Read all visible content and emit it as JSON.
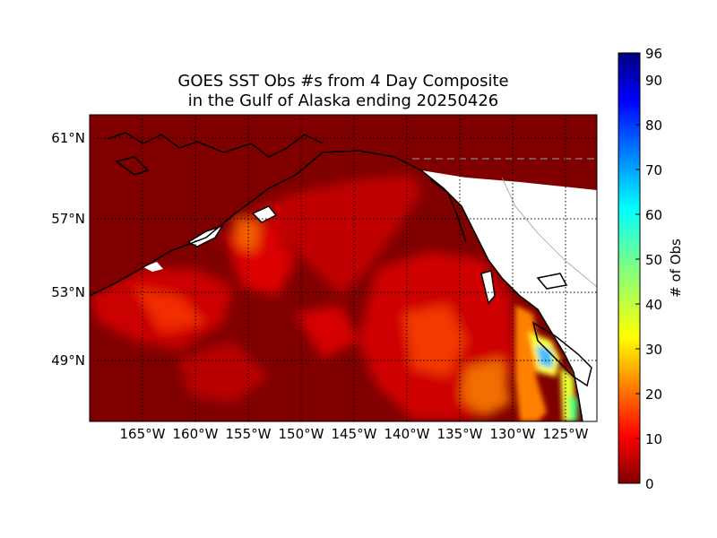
{
  "title": {
    "line1": "GOES SST Obs #s from 4 Day Composite",
    "line2": "in the Gulf of Alaska ending 20250426"
  },
  "map": {
    "lat_ticks": [
      "61°N",
      "57°N",
      "53°N",
      "49°N"
    ],
    "lon_ticks": [
      "165°W",
      "160°W",
      "155°W",
      "150°W",
      "145°W",
      "140°W",
      "135°W",
      "130°W",
      "125°W"
    ],
    "background_color": "#800000",
    "land_color": "#ffffff",
    "coast_color": "#000000",
    "grid": "dotted"
  },
  "colorbar": {
    "label": "# of Obs",
    "ticks": [
      "0",
      "10",
      "20",
      "30",
      "40",
      "50",
      "60",
      "70",
      "80",
      "90",
      "96"
    ],
    "range": [
      0,
      96
    ],
    "colormap": "jet_r"
  }
}
